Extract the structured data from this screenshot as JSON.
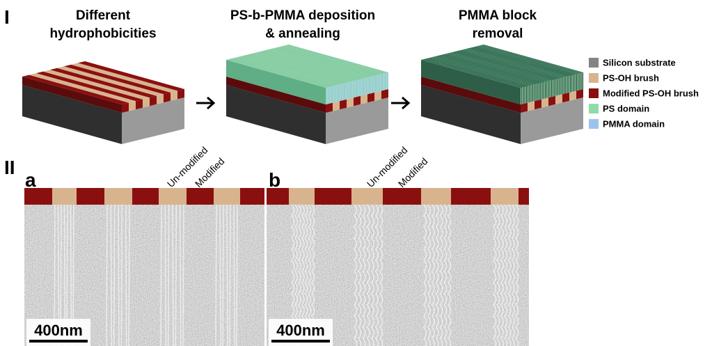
{
  "panel_1": {
    "label": "I",
    "steps": [
      {
        "title_lines": [
          "Different",
          "hydrophobicities"
        ]
      },
      {
        "title_lines": [
          "PS-b-PMMA deposition",
          "& annealing"
        ]
      },
      {
        "title_lines": [
          "PMMA block",
          "removal"
        ]
      }
    ],
    "legend": [
      {
        "label": "Silicon substrate",
        "color": "#848484"
      },
      {
        "label": "PS-OH brush",
        "color": "#d8b48e"
      },
      {
        "label": "Modified PS-OH brush",
        "color": "#8a1010"
      },
      {
        "label": "PS domain",
        "color": "#8fdcaa"
      },
      {
        "label": "PMMA domain",
        "color": "#9dc2ee"
      }
    ]
  },
  "panel_2": {
    "label": "II",
    "images": [
      {
        "label": "a",
        "annotations": [
          "Un-modified",
          "Modified"
        ],
        "scale_bar": "400nm"
      },
      {
        "label": "b",
        "annotations": [
          "Un-modified",
          "Modified"
        ],
        "scale_bar": "400nm"
      }
    ]
  }
}
